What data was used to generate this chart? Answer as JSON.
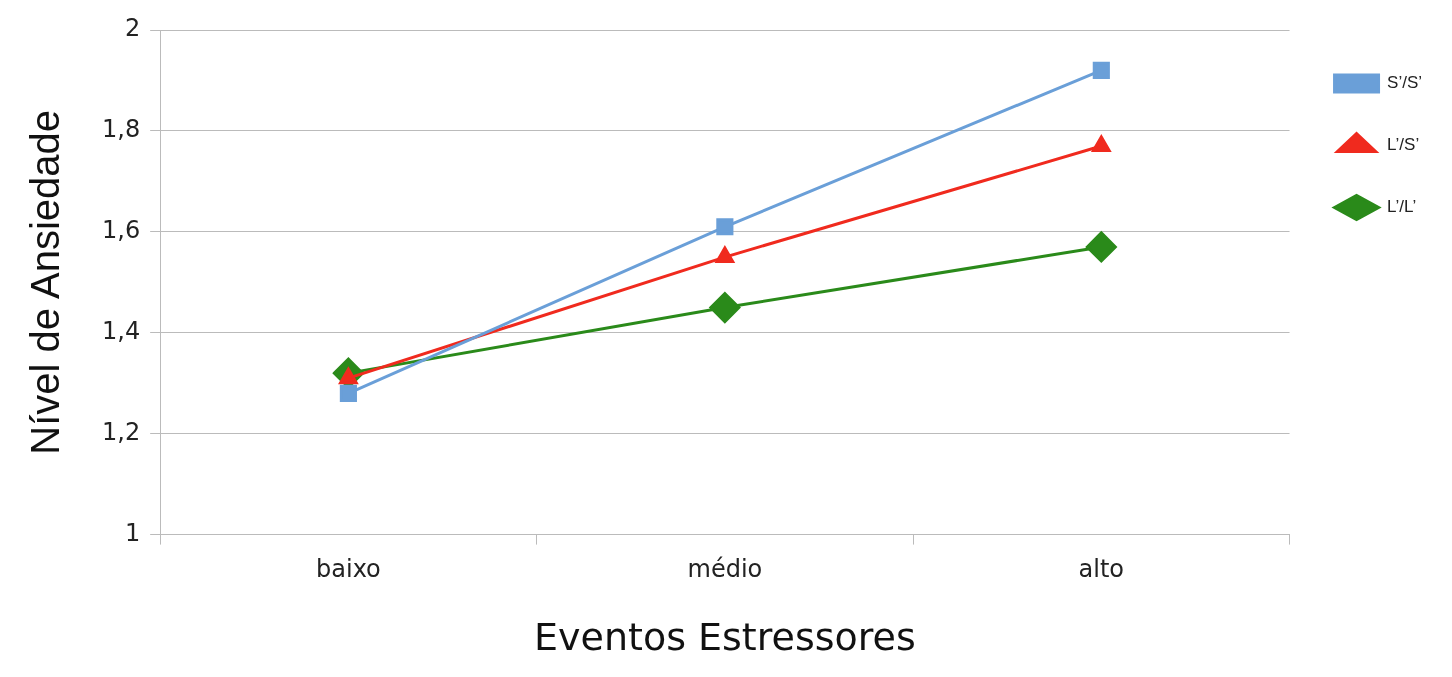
{
  "chart_data": {
    "type": "line",
    "xlabel": "Eventos Estressores",
    "ylabel": "Nível de Ansiedade",
    "categories": [
      "baixo",
      "médio",
      "alto"
    ],
    "series": [
      {
        "name": "S’/S’",
        "color": "#6a9fd8",
        "values": [
          1.28,
          1.61,
          1.92
        ],
        "marker": "square"
      },
      {
        "name": "L’/S’",
        "color": "#f02a1e",
        "values": [
          1.31,
          1.55,
          1.77
        ],
        "marker": "triangle"
      },
      {
        "name": "L’/L’",
        "color": "#2a8a1a",
        "values": [
          1.32,
          1.45,
          1.57
        ],
        "marker": "diamond"
      }
    ],
    "ylim": [
      1,
      2
    ],
    "yticks": [
      {
        "value": 1,
        "label": "1"
      },
      {
        "value": 1.2,
        "label": "1,2"
      },
      {
        "value": 1.4,
        "label": "1,4"
      },
      {
        "value": 1.6,
        "label": "1,6"
      },
      {
        "value": 1.8,
        "label": "1,8"
      },
      {
        "value": 2,
        "label": "2"
      }
    ],
    "grid": "y",
    "legend": "right",
    "line_style": "solid"
  }
}
